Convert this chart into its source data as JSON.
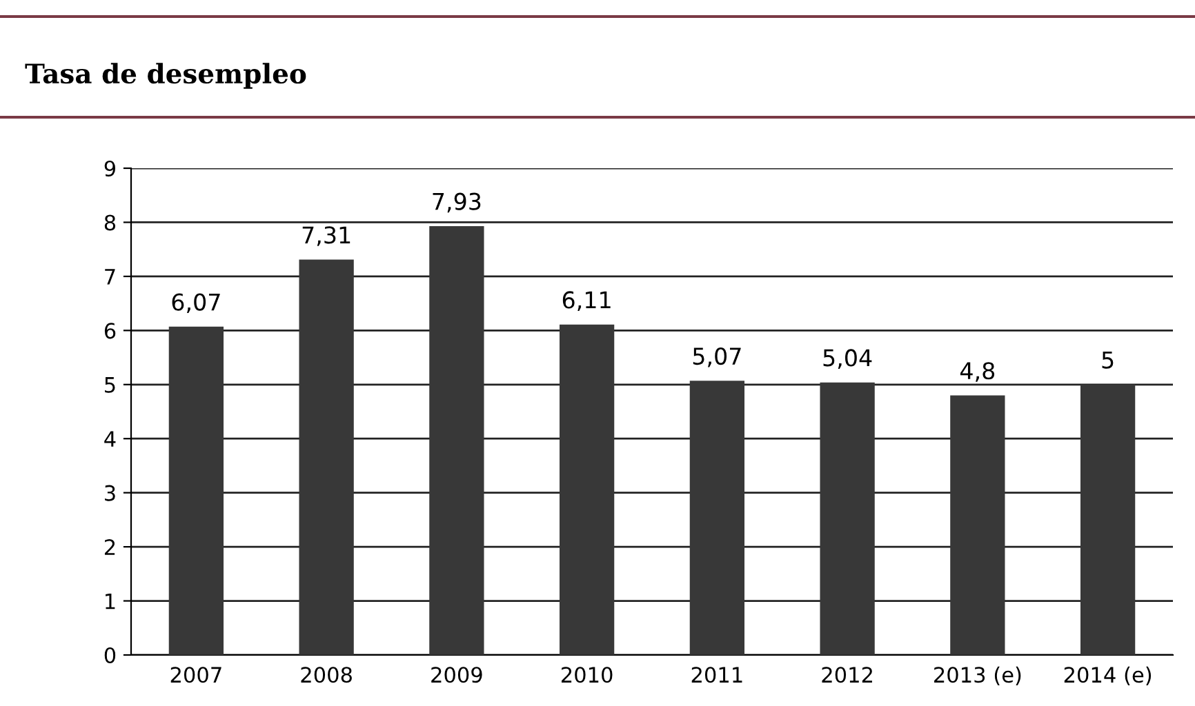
{
  "chart_data": {
    "type": "bar",
    "title": "Tasa de desempleo",
    "categories": [
      "2007",
      "2008",
      "2009",
      "2010",
      "2011",
      "2012",
      "2013 (e)",
      "2014 (e)"
    ],
    "values": [
      6.07,
      7.31,
      7.93,
      6.11,
      5.07,
      5.04,
      4.8,
      5
    ],
    "value_labels": [
      "6,07",
      "7,31",
      "7,93",
      "6,11",
      "5,07",
      "5,04",
      "4,8",
      "5"
    ],
    "color": "#383838",
    "ylim": [
      0,
      9
    ],
    "yticks": [
      0,
      1,
      2,
      3,
      4,
      5,
      6,
      7,
      8,
      9
    ],
    "grid": "y",
    "legend": false
  }
}
